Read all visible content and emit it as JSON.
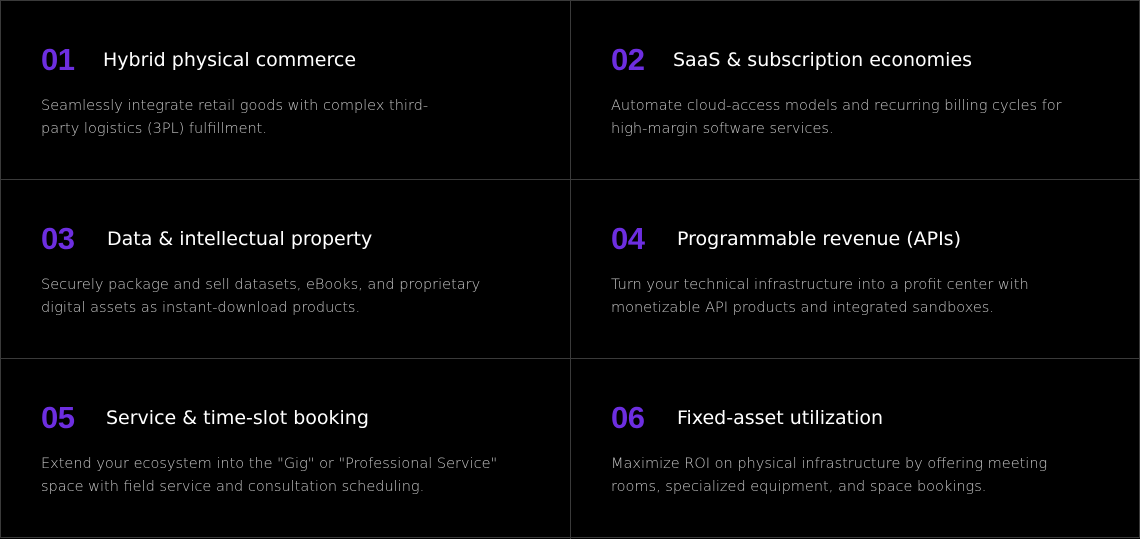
{
  "accent_color": "#6d2ee0",
  "cards": [
    {
      "number": "01",
      "title": "Hybrid physical commerce",
      "description": "Seamlessly integrate retail goods with complex third-party logistics (3PL) fulfillment."
    },
    {
      "number": "02",
      "title": "SaaS & subscription economies",
      "description": "Automate cloud-access models and recurring billing cycles for high-margin software services."
    },
    {
      "number": "03",
      "title": "Data & intellectual property",
      "description": "Securely package and sell datasets, eBooks, and proprietary digital assets as instant-download products."
    },
    {
      "number": "04",
      "title": "Programmable revenue (APIs)",
      "description": "Turn your technical infrastructure into a profit center with monetizable API products and integrated sandboxes."
    },
    {
      "number": "05",
      "title": "Service & time-slot booking",
      "description": "Extend your ecosystem into the \"Gig\" or \"Professional Service\" space with field service and consultation scheduling."
    },
    {
      "number": "06",
      "title": "Fixed-asset utilization",
      "description": "Maximize ROI on physical infrastructure by offering meeting rooms, specialized equipment, and space bookings."
    }
  ]
}
